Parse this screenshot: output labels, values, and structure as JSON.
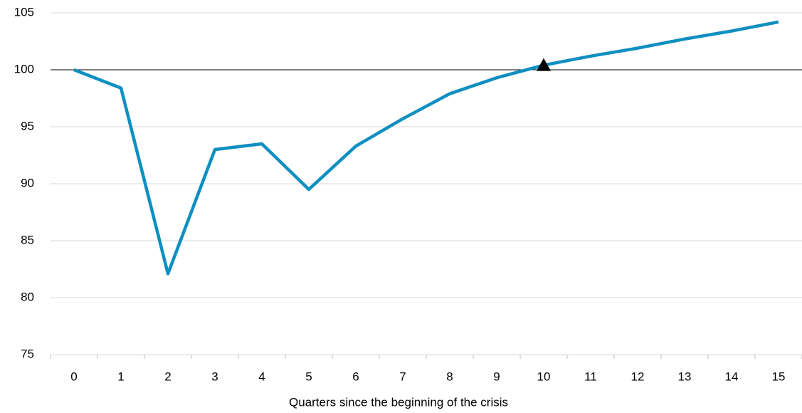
{
  "chart_data": {
    "type": "line",
    "xlabel": "Quarters since the beginning of the crisis",
    "categories": [
      "0",
      "1",
      "2",
      "3",
      "4",
      "5",
      "6",
      "7",
      "8",
      "9",
      "10",
      "11",
      "12",
      "13",
      "14",
      "15"
    ],
    "series": [
      {
        "color": "#0f8fc1",
        "values": [
          100,
          98.4,
          82.1,
          93.0,
          93.5,
          89.5,
          93.3,
          95.7,
          97.9,
          99.3,
          100.4,
          101.2,
          101.9,
          102.7,
          103.4,
          104.2
        ]
      },
      {
        "color": "#000000",
        "marker": "triangle",
        "values": [
          null,
          null,
          null,
          null,
          null,
          null,
          null,
          null,
          null,
          null,
          100.4,
          null,
          null,
          null,
          null,
          null
        ]
      }
    ],
    "reference_line": 100,
    "ylim": [
      75,
      105
    ],
    "yticks": [
      75,
      80,
      85,
      90,
      95,
      100,
      105
    ],
    "grid": true
  }
}
